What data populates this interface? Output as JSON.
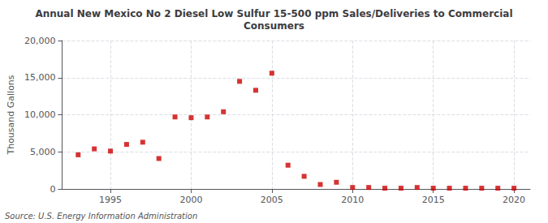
{
  "chart_data": {
    "type": "scatter",
    "title": "Annual New Mexico No 2 Diesel Low Sulfur 15-500 ppm Sales/Deliveries to Commercial\nConsumers",
    "ylabel": "Thousand Gallons",
    "source": "Source: U.S. Energy Information Administration",
    "x": [
      1993,
      1994,
      1995,
      1996,
      1997,
      1998,
      1999,
      2000,
      2001,
      2002,
      2003,
      2004,
      2005,
      2006,
      2007,
      2008,
      2009,
      2010,
      2011,
      2012,
      2013,
      2014,
      2015,
      2016,
      2017,
      2018,
      2019,
      2020
    ],
    "values": [
      4600,
      5400,
      5100,
      6000,
      6300,
      4100,
      9700,
      9600,
      9700,
      10400,
      14500,
      13300,
      15600,
      3200,
      1700,
      600,
      900,
      200,
      200,
      100,
      100,
      200,
      100,
      100,
      100,
      100,
      100,
      100
    ],
    "color": "#cc0000",
    "marker": "square",
    "xlim": [
      1992,
      2021
    ],
    "xticks": [
      1995,
      2000,
      2005,
      2010,
      2015,
      2020
    ],
    "ylim": [
      0,
      20000
    ],
    "yticks": [
      0,
      {
        "value": 5000,
        "label": "5,000"
      },
      {
        "value": 10000,
        "label": "10,000"
      },
      {
        "value": 15000,
        "label": "15,000"
      },
      {
        "value": 20000,
        "label": "20,000"
      }
    ],
    "grid": true
  }
}
